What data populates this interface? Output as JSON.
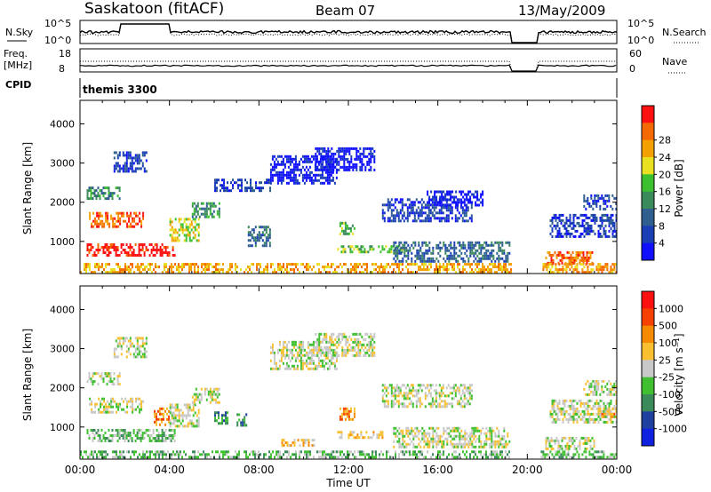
{
  "header": {
    "station": "Saskatoon (fitACF)",
    "beam": "Beam 07",
    "date": "13/May/2009"
  },
  "noise_panel": {
    "left_label": "N.Sky",
    "right_label": "N.Search",
    "left_ticks": [
      "10^5",
      "10^0"
    ],
    "right_ticks": [
      "10^5",
      "10^0"
    ]
  },
  "freq_panel": {
    "left_label_1": "Freq.",
    "left_label_2": "[MHz]",
    "right_label": "Nave",
    "left_ticks": [
      "18",
      "8"
    ],
    "right_ticks": [
      "60",
      "0"
    ]
  },
  "cpid_panel": {
    "label": "CPID",
    "program": "themis 3300"
  },
  "chart_data": [
    {
      "type": "heatmap",
      "name": "Power",
      "ylabel": "Slant Range [km]",
      "ylim": [
        180,
        4600
      ],
      "yticks": [
        "1000",
        "2000",
        "3000",
        "4000"
      ],
      "xlim_hours": [
        0,
        24
      ],
      "colorbar": {
        "label": "Power [dB]",
        "ticks": [
          "4",
          "8",
          "12",
          "16",
          "20",
          "24",
          "28"
        ],
        "colors": [
          "#1010ff",
          "#1a3fb5",
          "#2f5f8f",
          "#3a8a5a",
          "#3cc030",
          "#e8e020",
          "#f4a000",
          "#f56a00",
          "#ff1010"
        ]
      },
      "features": [
        {
          "start": 0.3,
          "end": 4.2,
          "range_lo": 650,
          "range_hi": 950,
          "level": 8
        },
        {
          "start": 0.4,
          "end": 2.8,
          "range_lo": 1400,
          "range_hi": 1750,
          "level": 7
        },
        {
          "start": 0.3,
          "end": 1.8,
          "range_lo": 2100,
          "range_hi": 2400,
          "level": 3
        },
        {
          "start": 1.5,
          "end": 3.0,
          "range_lo": 2800,
          "range_hi": 3300,
          "level": 1
        },
        {
          "start": 4.0,
          "end": 5.3,
          "range_lo": 1000,
          "range_hi": 1600,
          "level": 5
        },
        {
          "start": 5.0,
          "end": 6.2,
          "range_lo": 1600,
          "range_hi": 2000,
          "level": 3
        },
        {
          "start": 6.0,
          "end": 8.5,
          "range_lo": 2300,
          "range_hi": 2600,
          "level": 1
        },
        {
          "start": 7.5,
          "end": 8.5,
          "range_lo": 900,
          "range_hi": 1400,
          "level": 2
        },
        {
          "start": 8.5,
          "end": 11.5,
          "range_lo": 2500,
          "range_hi": 3200,
          "level": 0
        },
        {
          "start": 10.5,
          "end": 13.2,
          "range_lo": 2800,
          "range_hi": 3400,
          "level": 0
        },
        {
          "start": 11.6,
          "end": 12.3,
          "range_lo": 1200,
          "range_hi": 1500,
          "level": 4
        },
        {
          "start": 11.5,
          "end": 14.5,
          "range_lo": 700,
          "range_hi": 900,
          "level": 4
        },
        {
          "start": 13.5,
          "end": 17.5,
          "range_lo": 1500,
          "range_hi": 2100,
          "level": 1
        },
        {
          "start": 14.0,
          "end": 19.2,
          "range_lo": 500,
          "range_hi": 1000,
          "level": 2
        },
        {
          "start": 15.5,
          "end": 18.0,
          "range_lo": 1900,
          "range_hi": 2300,
          "level": 0
        },
        {
          "start": 20.8,
          "end": 23.0,
          "range_lo": 450,
          "range_hi": 750,
          "level": 7
        },
        {
          "start": 21.0,
          "end": 24.0,
          "range_lo": 1100,
          "range_hi": 1700,
          "level": 1
        },
        {
          "start": 22.5,
          "end": 24.0,
          "range_lo": 1800,
          "range_hi": 2200,
          "level": 1
        },
        {
          "start": 0.0,
          "end": 19.3,
          "range_lo": 200,
          "range_hi": 450,
          "level": 6
        },
        {
          "start": 20.6,
          "end": 24.0,
          "range_lo": 200,
          "range_hi": 450,
          "level": 6
        }
      ]
    },
    {
      "type": "heatmap",
      "name": "Velocity",
      "ylabel": "Slant Range [km]",
      "ylim": [
        180,
        4600
      ],
      "yticks": [
        "1000",
        "2000",
        "3000",
        "4000"
      ],
      "xlim_hours": [
        0,
        24
      ],
      "xticks": [
        "00:00",
        "04:00",
        "08:00",
        "12:00",
        "16:00",
        "20:00",
        "00:00"
      ],
      "xlabel": "Time UT",
      "colorbar": {
        "label": "Velocity [m s⁻¹]",
        "ticks": [
          "1000",
          "500",
          "100",
          "25",
          "-25",
          "-100",
          "-500",
          "-1000"
        ],
        "colors": [
          "#1020e0",
          "#2040a0",
          "#3a8a5a",
          "#40c030",
          "#c8c8c8",
          "#f8c030",
          "#f58a00",
          "#f54000",
          "#ff1010"
        ]
      },
      "features": [
        {
          "start": 0.3,
          "end": 4.2,
          "range_lo": 650,
          "range_hi": 950,
          "level": 3
        },
        {
          "start": 0.4,
          "end": 2.8,
          "range_lo": 1400,
          "range_hi": 1750,
          "level": 4
        },
        {
          "start": 0.3,
          "end": 1.8,
          "range_lo": 2100,
          "range_hi": 2400,
          "level": 4
        },
        {
          "start": 1.5,
          "end": 3.0,
          "range_lo": 2800,
          "range_hi": 3300,
          "level": 4
        },
        {
          "start": 3.3,
          "end": 4.0,
          "range_lo": 1050,
          "range_hi": 1500,
          "level": 6
        },
        {
          "start": 4.0,
          "end": 5.3,
          "range_lo": 1000,
          "range_hi": 1600,
          "level": 4
        },
        {
          "start": 5.0,
          "end": 6.2,
          "range_lo": 1600,
          "range_hi": 2000,
          "level": 4
        },
        {
          "start": 6.0,
          "end": 6.6,
          "range_lo": 1100,
          "range_hi": 1400,
          "level": 2
        },
        {
          "start": 7.0,
          "end": 7.4,
          "range_lo": 1050,
          "range_hi": 1350,
          "level": 2
        },
        {
          "start": 8.5,
          "end": 11.5,
          "range_lo": 2500,
          "range_hi": 3200,
          "level": 4
        },
        {
          "start": 10.5,
          "end": 13.2,
          "range_lo": 2800,
          "range_hi": 3400,
          "level": 4
        },
        {
          "start": 11.6,
          "end": 12.3,
          "range_lo": 1200,
          "range_hi": 1500,
          "level": 6
        },
        {
          "start": 11.5,
          "end": 13.5,
          "range_lo": 700,
          "range_hi": 900,
          "level": 5
        },
        {
          "start": 9.0,
          "end": 10.5,
          "range_lo": 550,
          "range_hi": 700,
          "level": 5
        },
        {
          "start": 13.5,
          "end": 17.5,
          "range_lo": 1500,
          "range_hi": 2100,
          "level": 4
        },
        {
          "start": 14.0,
          "end": 19.2,
          "range_lo": 500,
          "range_hi": 1000,
          "level": 4
        },
        {
          "start": 20.8,
          "end": 23.0,
          "range_lo": 450,
          "range_hi": 750,
          "level": 4
        },
        {
          "start": 23.3,
          "end": 24.0,
          "range_lo": 1250,
          "range_hi": 1500,
          "level": 6
        },
        {
          "start": 21.0,
          "end": 24.0,
          "range_lo": 1100,
          "range_hi": 1700,
          "level": 4
        },
        {
          "start": 22.5,
          "end": 24.0,
          "range_lo": 1800,
          "range_hi": 2200,
          "level": 4
        },
        {
          "start": 0.0,
          "end": 19.3,
          "range_lo": 200,
          "range_hi": 400,
          "level": 3
        },
        {
          "start": 20.6,
          "end": 24.0,
          "range_lo": 200,
          "range_hi": 400,
          "level": 3
        }
      ]
    }
  ]
}
